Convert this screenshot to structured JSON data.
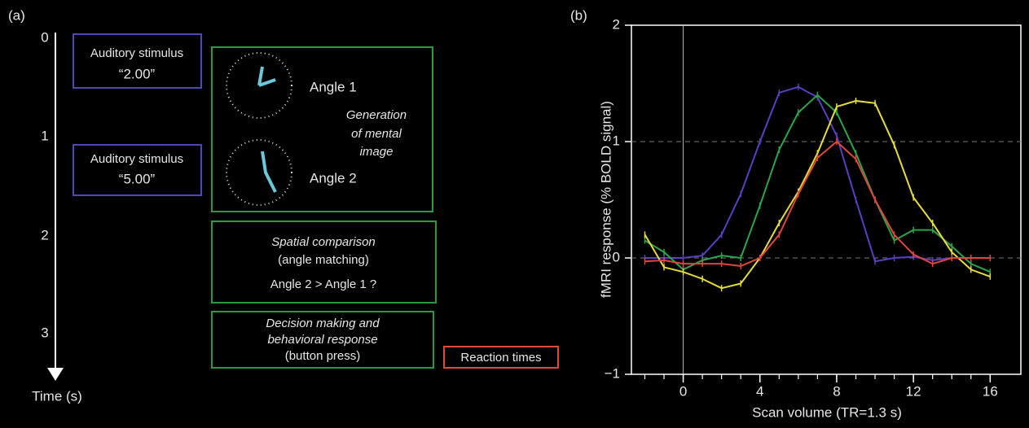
{
  "diagram": {
    "panel_label": "(a)",
    "time_ticks": [
      "0",
      "1",
      "2",
      "3"
    ],
    "time_label": "Time (s)",
    "stimulus_1": {
      "title": "Auditory stimulus",
      "value": "“2.00”"
    },
    "stimulus_2": {
      "title": "Auditory stimulus",
      "value": "“5.00”"
    },
    "angle_1": "Angle 1",
    "angle_2": "Angle 2",
    "generation": [
      "Generation",
      "of mental",
      "image"
    ],
    "comparison": {
      "title": "Spatial comparison",
      "subtitle": "(angle matching)",
      "question": "Angle 2 > Angle 1  ?"
    },
    "decision": [
      "Decision making and",
      "behavioral response",
      "(button press)"
    ],
    "reaction": "Reaction times"
  },
  "chart_data": {
    "type": "line",
    "panel_label": "(b)",
    "x_label": "Scan volume (TR=1.3 s)",
    "y_label": "fMRI response (% BOLD signal)",
    "x": [
      -2,
      -1,
      0,
      1,
      2,
      3,
      4,
      5,
      6,
      7,
      8,
      9,
      10,
      11,
      12,
      13,
      14,
      15,
      16
    ],
    "series": [
      {
        "color": "#5a3fc0",
        "values": [
          0,
          0,
          0,
          0.02,
          0.2,
          0.55,
          1.0,
          1.42,
          1.47,
          1.38,
          1.05,
          0.5,
          -0.03,
          0,
          0.01,
          -0.02,
          0,
          0,
          0
        ]
      },
      {
        "color": "#2aa54a",
        "values": [
          0.15,
          0.05,
          -0.1,
          -0.02,
          0.02,
          0,
          0.45,
          0.93,
          1.25,
          1.4,
          1.25,
          0.9,
          0.5,
          0.15,
          0.24,
          0.24,
          0.1,
          -0.05,
          -0.12
        ]
      },
      {
        "color": "#e6dc3a",
        "values": [
          0.2,
          -0.08,
          -0.12,
          -0.18,
          -0.26,
          -0.22,
          0,
          0.3,
          0.57,
          0.9,
          1.3,
          1.35,
          1.33,
          0.97,
          0.52,
          0.3,
          0.05,
          -0.1,
          -0.16
        ]
      },
      {
        "color": "#e0463a",
        "values": [
          -0.03,
          -0.02,
          -0.05,
          -0.05,
          -0.05,
          -0.07,
          0,
          0.2,
          0.55,
          0.86,
          1.0,
          0.85,
          0.5,
          0.2,
          0.03,
          -0.05,
          0,
          0,
          0
        ]
      }
    ],
    "xlim": [
      -2.7,
      17.6
    ],
    "ylim": [
      -1,
      2
    ],
    "xticks": [
      0,
      4,
      8,
      12,
      16
    ],
    "x_minor_ticks": [
      -2,
      -1,
      0,
      1,
      2,
      3,
      4,
      5,
      6,
      7,
      8,
      9,
      10,
      11,
      12,
      13,
      14,
      15,
      16
    ],
    "yticks": [
      {
        "value": -1,
        "label": "−1"
      },
      0,
      1,
      2
    ],
    "reference_lines": [
      0,
      1
    ],
    "vertical_line": 0
  }
}
